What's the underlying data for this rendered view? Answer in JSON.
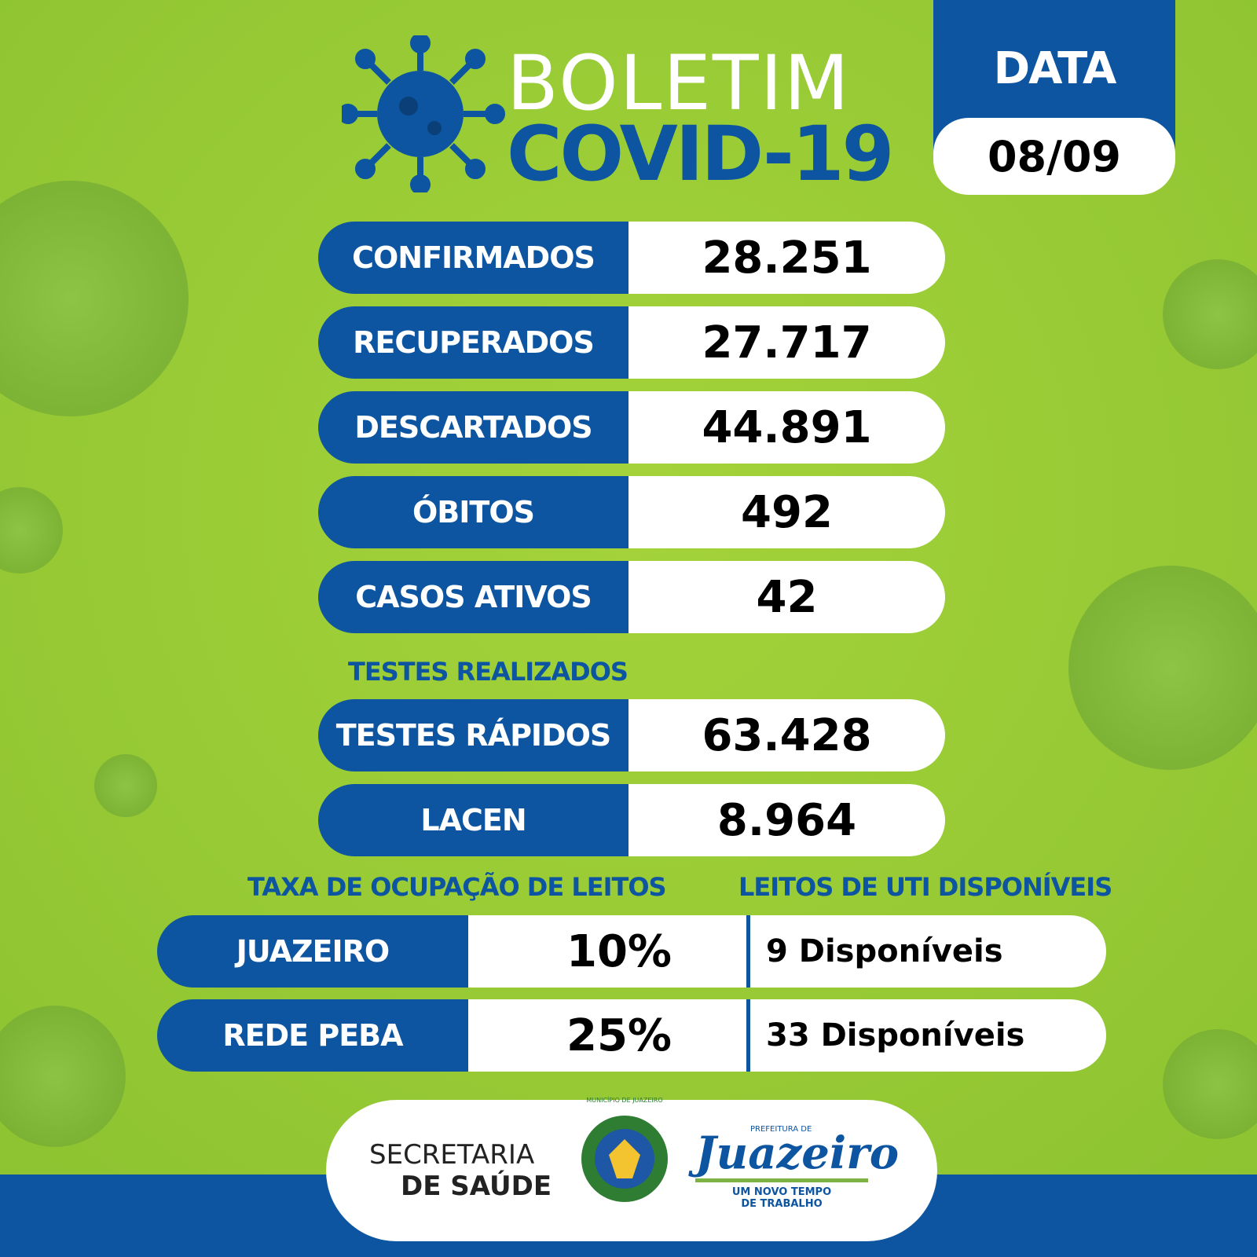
{
  "header": {
    "title": "BOLETIM",
    "subtitle": "COVID-19",
    "date_label": "DATA",
    "date": "08/09"
  },
  "summary": [
    {
      "label": "CONFIRMADOS",
      "value": "28.251"
    },
    {
      "label": "RECUPERADOS",
      "value": "27.717"
    },
    {
      "label": "DESCARTADOS",
      "value": "44.891"
    },
    {
      "label": "ÓBITOS",
      "value": "492"
    },
    {
      "label": "CASOS ATIVOS",
      "value": "42"
    }
  ],
  "tests": {
    "heading": "TESTES REALIZADOS",
    "rows": [
      {
        "label": "TESTES RÁPIDOS",
        "value": "63.428"
      },
      {
        "label": "LACEN",
        "value": "8.964"
      }
    ]
  },
  "beds": {
    "occupancy_heading": "TAXA DE OCUPAÇÃO DE LEITOS",
    "icu_heading": "LEITOS DE UTI DISPONÍVEIS",
    "rows": [
      {
        "name": "JUAZEIRO",
        "rate": "10%",
        "available": "9 Disponíveis"
      },
      {
        "name": "REDE PEBA",
        "rate": "25%",
        "available": "33 Disponíveis"
      }
    ]
  },
  "footer": {
    "department_line1": "SECRETARIA",
    "department_line2": "DE SAÚDE",
    "seal": "MUNICÍPIO DE JUAZEIRO",
    "city_prefix": "PREFEITURA DE",
    "city": "Juazeiro",
    "slogan_line1": "UM NOVO TEMPO",
    "slogan_line2": "DE TRABALHO"
  }
}
